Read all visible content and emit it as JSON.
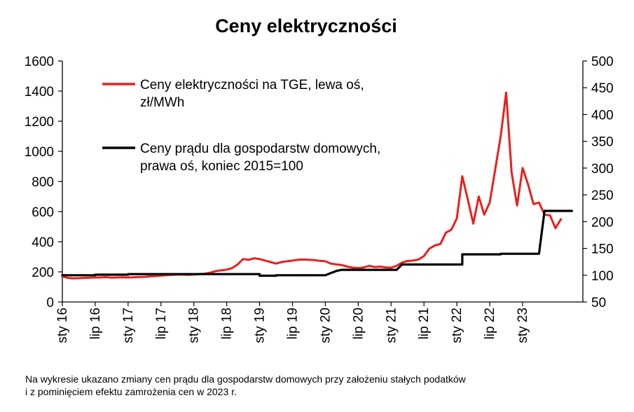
{
  "chart_data": {
    "type": "line",
    "title": "Ceny elektryczności",
    "x_tick_labels": [
      "sty 16",
      "lip 16",
      "sty 17",
      "lip 17",
      "sty 18",
      "lip 18",
      "sty 19",
      "lip 19",
      "sty 20",
      "lip 20",
      "sty 21",
      "lip 21",
      "sty 22",
      "lip 22",
      "sty 23"
    ],
    "x_range_months": [
      0,
      95
    ],
    "y_left": {
      "ylim": [
        0,
        1600
      ],
      "ticks": [
        0,
        200,
        400,
        600,
        800,
        1000,
        1200,
        1400,
        1600
      ]
    },
    "y_right": {
      "ylim": [
        50,
        500
      ],
      "ticks": [
        50,
        100,
        150,
        200,
        250,
        300,
        350,
        400,
        450,
        500
      ]
    },
    "series": [
      {
        "name": "Ceny elektryczności na TGE, lewa oś,",
        "name_line2": "zł/MWh",
        "axis": "left",
        "color": "#e8201e",
        "points": [
          [
            0,
            170
          ],
          [
            1,
            160
          ],
          [
            2,
            157
          ],
          [
            3,
            158
          ],
          [
            4,
            160
          ],
          [
            5,
            162
          ],
          [
            6,
            163
          ],
          [
            7,
            163
          ],
          [
            8,
            165
          ],
          [
            9,
            162
          ],
          [
            10,
            163
          ],
          [
            11,
            164
          ],
          [
            12,
            163
          ],
          [
            13,
            164
          ],
          [
            14,
            166
          ],
          [
            15,
            167
          ],
          [
            16,
            170
          ],
          [
            17,
            172
          ],
          [
            18,
            175
          ],
          [
            19,
            178
          ],
          [
            20,
            180
          ],
          [
            21,
            182
          ],
          [
            22,
            182
          ],
          [
            23,
            180
          ],
          [
            24,
            182
          ],
          [
            25,
            185
          ],
          [
            26,
            188
          ],
          [
            27,
            195
          ],
          [
            28,
            205
          ],
          [
            29,
            210
          ],
          [
            30,
            215
          ],
          [
            31,
            225
          ],
          [
            32,
            250
          ],
          [
            33,
            285
          ],
          [
            34,
            280
          ],
          [
            35,
            290
          ],
          [
            36,
            285
          ],
          [
            37,
            275
          ],
          [
            38,
            265
          ],
          [
            39,
            255
          ],
          [
            40,
            265
          ],
          [
            41,
            270
          ],
          [
            42,
            275
          ],
          [
            43,
            280
          ],
          [
            44,
            282
          ],
          [
            45,
            280
          ],
          [
            46,
            278
          ],
          [
            47,
            273
          ],
          [
            48,
            270
          ],
          [
            49,
            255
          ],
          [
            50,
            250
          ],
          [
            51,
            245
          ],
          [
            52,
            235
          ],
          [
            53,
            228
          ],
          [
            54,
            225
          ],
          [
            55,
            230
          ],
          [
            56,
            240
          ],
          [
            57,
            232
          ],
          [
            58,
            235
          ],
          [
            59,
            230
          ],
          [
            60,
            228
          ],
          [
            61,
            240
          ],
          [
            62,
            262
          ],
          [
            63,
            272
          ],
          [
            64,
            275
          ],
          [
            65,
            282
          ],
          [
            66,
            305
          ],
          [
            67,
            355
          ],
          [
            68,
            375
          ],
          [
            69,
            385
          ],
          [
            70,
            460
          ],
          [
            71,
            480
          ],
          [
            72,
            555
          ],
          [
            73,
            835
          ],
          [
            74,
            680
          ],
          [
            75,
            520
          ],
          [
            76,
            700
          ],
          [
            77,
            580
          ],
          [
            78,
            660
          ],
          [
            79,
            880
          ],
          [
            80,
            1100
          ],
          [
            81,
            1390
          ],
          [
            82,
            860
          ],
          [
            83,
            640
          ],
          [
            84,
            890
          ],
          [
            85,
            780
          ],
          [
            86,
            650
          ],
          [
            87,
            660
          ],
          [
            88,
            580
          ],
          [
            89,
            575
          ],
          [
            90,
            490
          ],
          [
            91,
            550
          ]
        ]
      },
      {
        "name": "Ceny prądu dla gospodarstw domowych,",
        "name_line2": "prawa oś, koniec 2015=100",
        "axis": "right",
        "color": "#000000",
        "points": [
          [
            0,
            100
          ],
          [
            6,
            100
          ],
          [
            6,
            101
          ],
          [
            12,
            101
          ],
          [
            12,
            102
          ],
          [
            36,
            102
          ],
          [
            36,
            99
          ],
          [
            39,
            99
          ],
          [
            39,
            100
          ],
          [
            48,
            100
          ],
          [
            50,
            108
          ],
          [
            51,
            110
          ],
          [
            61,
            110
          ],
          [
            62,
            120
          ],
          [
            73,
            120
          ],
          [
            73,
            139
          ],
          [
            80,
            139
          ],
          [
            80,
            140
          ],
          [
            87,
            140
          ],
          [
            88,
            220
          ],
          [
            93,
            220
          ]
        ]
      }
    ],
    "footnote_line1": "Na wykresie ukazano zmiany cen prądu dla gospodarstw domowych przy założeniu stałych podatków",
    "footnote_line2": "i z pominięciem efektu zamrożenia cen w 2023 r."
  }
}
